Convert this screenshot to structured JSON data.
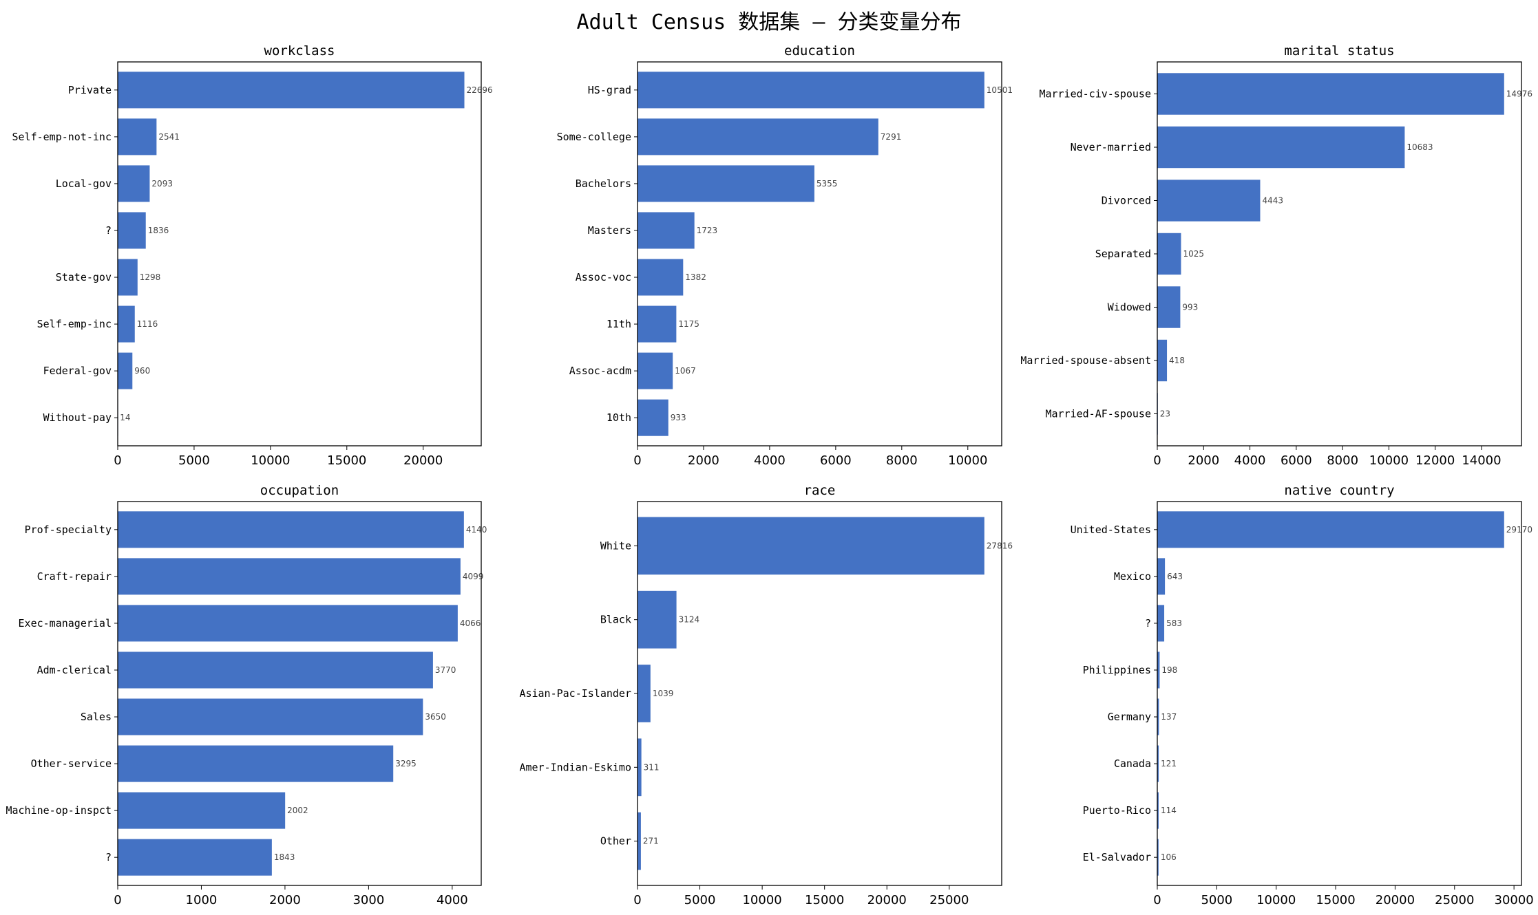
{
  "title": "Adult Census 数据集 — 分类变量分布",
  "bar_color": "#4472c4",
  "chart_data": [
    {
      "type": "bar",
      "orientation": "horizontal",
      "title": "workclass",
      "categories": [
        "Private",
        "Self-emp-not-inc",
        "Local-gov",
        "?",
        "State-gov",
        "Self-emp-inc",
        "Federal-gov",
        "Without-pay"
      ],
      "values": [
        22696,
        2541,
        2093,
        1836,
        1298,
        1116,
        960,
        14
      ],
      "xlim": [
        0,
        23800
      ],
      "xticks": [
        0,
        5000,
        10000,
        15000,
        20000
      ]
    },
    {
      "type": "bar",
      "orientation": "horizontal",
      "title": "education",
      "categories": [
        "HS-grad",
        "Some-college",
        "Bachelors",
        "Masters",
        "Assoc-voc",
        "11th",
        "Assoc-acdm",
        "10th"
      ],
      "values": [
        10501,
        7291,
        5355,
        1723,
        1382,
        1175,
        1067,
        933
      ],
      "xlim": [
        0,
        11026
      ],
      "xticks": [
        0,
        2000,
        4000,
        6000,
        8000,
        10000
      ]
    },
    {
      "type": "bar",
      "orientation": "horizontal",
      "title": "marital status",
      "categories": [
        "Married-civ-spouse",
        "Never-married",
        "Divorced",
        "Separated",
        "Widowed",
        "Married-spouse-absent",
        "Married-AF-spouse"
      ],
      "values": [
        14976,
        10683,
        4443,
        1025,
        993,
        418,
        23
      ],
      "xlim": [
        0,
        15725
      ],
      "xticks": [
        0,
        2000,
        4000,
        6000,
        8000,
        10000,
        12000,
        14000
      ]
    },
    {
      "type": "bar",
      "orientation": "horizontal",
      "title": "occupation",
      "categories": [
        "Prof-specialty",
        "Craft-repair",
        "Exec-managerial",
        "Adm-clerical",
        "Sales",
        "Other-service",
        "Machine-op-inspct",
        "?"
      ],
      "values": [
        4140,
        4099,
        4066,
        3770,
        3650,
        3295,
        2002,
        1843
      ],
      "xlim": [
        0,
        4347
      ],
      "xticks": [
        0,
        1000,
        2000,
        3000,
        4000
      ]
    },
    {
      "type": "bar",
      "orientation": "horizontal",
      "title": "race",
      "categories": [
        "White",
        "Black",
        "Asian-Pac-Islander",
        "Amer-Indian-Eskimo",
        "Other"
      ],
      "values": [
        27816,
        3124,
        1039,
        311,
        271
      ],
      "xlim": [
        0,
        29207
      ],
      "xticks": [
        0,
        5000,
        10000,
        15000,
        20000,
        25000
      ]
    },
    {
      "type": "bar",
      "orientation": "horizontal",
      "title": "native country",
      "categories": [
        "United-States",
        "Mexico",
        "?",
        "Philippines",
        "Germany",
        "Canada",
        "Puerto-Rico",
        "El-Salvador"
      ],
      "values": [
        29170,
        643,
        583,
        198,
        137,
        121,
        114,
        106
      ],
      "xlim": [
        0,
        30629
      ],
      "xticks": [
        0,
        5000,
        10000,
        15000,
        20000,
        25000,
        30000
      ]
    }
  ]
}
